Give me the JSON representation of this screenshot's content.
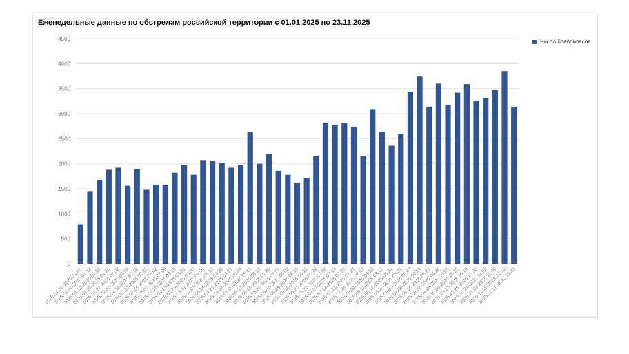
{
  "chart_data": {
    "type": "bar",
    "title": "Еженедельные данные по обстрелам российской территории с 01.01.2025 по 23.11.2025",
    "xlabel": "",
    "ylabel": "",
    "ylim": [
      0,
      4500
    ],
    "yticks": [
      0,
      500,
      1000,
      1500,
      2000,
      2500,
      3000,
      3500,
      4000,
      4500
    ],
    "grid": true,
    "legend_position": "right",
    "color": "#2f5597",
    "series": [
      {
        "name": "Число боеприпасов",
        "values": [
          790,
          1440,
          1680,
          1880,
          1920,
          1560,
          1890,
          1480,
          1580,
          1570,
          1820,
          1980,
          1780,
          2060,
          2050,
          2010,
          1920,
          1980,
          2630,
          2000,
          2190,
          1860,
          1780,
          1620,
          1720,
          2150,
          2810,
          2780,
          2810,
          2740,
          2160,
          3090,
          2640,
          2360,
          2590,
          3440,
          3740,
          3140,
          3600,
          3180,
          3420,
          3590,
          3250,
          3310,
          3470,
          3850,
          3140
        ]
      }
    ],
    "categories": [
      "2025.01.01-2025.01.05",
      "2025.01.06-2025.01.12",
      "2025.01.13-2025.01.19",
      "2025.01.20-2025.01.26",
      "2025.01.27-2025.02.02",
      "2025.02.03-2025.02.09",
      "2025.02.10-2025.02.16",
      "2025.02.17-2025.02.23",
      "2025.02.24-2025.03.02",
      "2025.03.03-2025.03.09",
      "2025.03.10-2025.03.16",
      "2025.03.17-2025.03.23",
      "2025.03.24-2025.03.30",
      "2025.03.31-2025.04.06",
      "2025.04.07-2025.04.13",
      "2025.04.14-2025.04.20",
      "2025.04.21-2025.04.27",
      "2025.04.28-2025.05.04",
      "2025.05.05-2025.05.11",
      "2025.05.12-2025.05.18",
      "2025.05.19-2025.05.25",
      "2025.05.26-2025.06.01",
      "2025.06.02-2025.06.08",
      "2025.06.09-2025.06.15",
      "2025.06.16-2025.06.22",
      "2025.06.23-2025.06.29",
      "2025.06.30-2025.07.06",
      "2025.07.07-2025.07.13",
      "2025.07.14-2025.07.20",
      "2025.07.21-2025.07.27",
      "2025.07.28-2025.08.03",
      "2025.08.04-2025.08.10",
      "2025.08.11-2025.08.17",
      "2025.08.18-2025.08.24",
      "2025.08.25-2025.08.31",
      "2025.09.01-2025.09.07",
      "2025.09.08-2025.09.14",
      "2025.09.15-2025.09.21",
      "2025.09.22-2025.09.28",
      "2025.09.29-2025.10.05",
      "2025.10.06-2025.10.12",
      "2025.10.13-2025.10.19",
      "2025.10.20-2025.10.26",
      "2025.10.27-2025.11.02",
      "2025.11.03-2025.11.09",
      "2025.11.10-2025.11.16",
      "2025.11.17-2025.11.23"
    ]
  }
}
